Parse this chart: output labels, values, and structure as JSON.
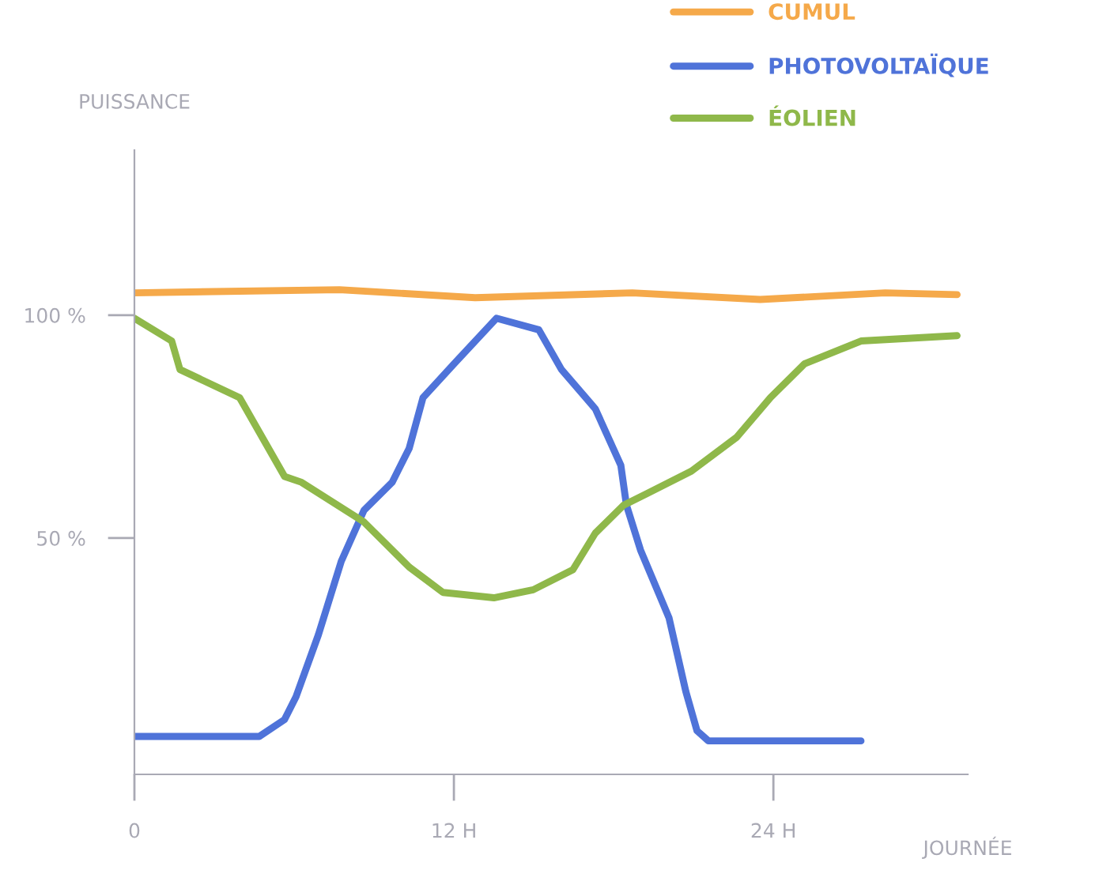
{
  "chart_data": {
    "type": "line",
    "ylabel": "PUISSANCE",
    "xlabel": "JOURNÉE",
    "xlim": [
      0,
      31.3
    ],
    "ylim": [
      -3,
      137
    ],
    "xticks": [
      {
        "value": 0,
        "label": "0"
      },
      {
        "value": 12,
        "label": "12 H"
      },
      {
        "value": 24,
        "label": "24 H"
      }
    ],
    "yticks": [
      {
        "value": 50,
        "label": "50 %"
      },
      {
        "value": 100,
        "label": "100 %"
      }
    ],
    "grid": false,
    "legend": "top right",
    "line_style": "solid",
    "marker": "none",
    "series": [
      {
        "name": "CUMUL",
        "color": "#f5a94a",
        "x": [
          0,
          7.7,
          12.8,
          18.7,
          23.5,
          28.2,
          30.9
        ],
        "values": [
          105,
          105.7,
          103.9,
          105,
          103.5,
          105,
          104.6
        ]
      },
      {
        "name": "PHOTOVOLTAÏQUE",
        "color": "#4f73d9",
        "x": [
          0,
          4.69,
          5.64,
          6.07,
          6.91,
          7.77,
          8.62,
          9.68,
          10.32,
          10.84,
          12.01,
          13.6,
          15.19,
          16.04,
          17.31,
          18.27,
          18.48,
          19.01,
          20.08,
          20.71,
          21.13,
          21.56,
          27.29
        ],
        "values": [
          5.5,
          5.5,
          9.3,
          14.4,
          28.3,
          44.8,
          56.2,
          62.5,
          70.1,
          81.5,
          89.1,
          99.3,
          96.7,
          87.8,
          79.0,
          66.3,
          57.4,
          47.3,
          32.1,
          15.6,
          6.8,
          4.5,
          4.5
        ]
      },
      {
        "name": "ÉOLIEN",
        "color": "#8fb84a",
        "x": [
          0,
          1.4,
          1.71,
          3.95,
          5.64,
          6.28,
          8.62,
          10.32,
          11.59,
          13.5,
          14.98,
          16.47,
          17.31,
          18.38,
          19.23,
          20.92,
          22.62,
          23.89,
          25.17,
          27.29,
          30.9
        ],
        "values": [
          99.3,
          94.2,
          87.8,
          81.5,
          63.8,
          62.5,
          53.6,
          43.5,
          37.8,
          36.6,
          38.4,
          42.9,
          51.1,
          57.4,
          59.9,
          65.0,
          72.6,
          81.5,
          89.1,
          94.2,
          95.4
        ]
      }
    ]
  }
}
